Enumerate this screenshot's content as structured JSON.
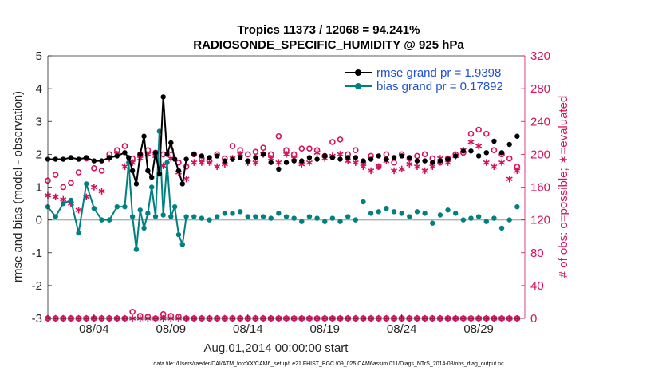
{
  "chart_data": {
    "type": "line",
    "title_line1": "Tropics 11373 / 12068 = 94.241%",
    "title_line2": "RADIOSONDE_SPECIFIC_HUMIDITY @ 925 hPa",
    "xlabel": "Aug.01,2014 00:00:00 start",
    "ylabel_left": "rmse and bias (model - observation)",
    "ylabel_right": "# of obs: o=possible; ∗=evaluated",
    "footer": "data file: /Users/raeder/DAI/ATM_forcXX/CAM6_setup/f.e21.FHIST_BGC.f09_025.CAM6assim.011/Diags_NTrS_2014-08/obs_diag_output.nc",
    "x_tick_labels": [
      "08/04",
      "08/09",
      "08/14",
      "08/19",
      "08/24",
      "08/29"
    ],
    "x_tick_days": [
      4,
      9,
      14,
      19,
      24,
      29
    ],
    "xlim_days": [
      1.0,
      32.0
    ],
    "ylim_left": [
      -3,
      5
    ],
    "y_ticks_left": [
      "-3",
      "-2",
      "-1",
      "0",
      "1",
      "2",
      "3",
      "4",
      "5"
    ],
    "ylim_right": [
      0,
      320
    ],
    "y_ticks_right": [
      "0",
      "40",
      "80",
      "120",
      "160",
      "200",
      "240",
      "280",
      "320"
    ],
    "colors": {
      "rmse": "#000000",
      "bias": "#008080",
      "obs": "#d6115d",
      "legend_text": "#1f4fd6",
      "zero_line": "#b0b0b0"
    },
    "legend": {
      "position": "top-right",
      "rmse_label": "rmse grand pr = 1.9398",
      "bias_label": "bias grand pr = 0.17892"
    },
    "series": [
      {
        "name": "rmse",
        "x": [
          1.0,
          1.5,
          2.0,
          2.5,
          3.0,
          3.5,
          4.0,
          4.5,
          5.0,
          5.5,
          6.0,
          6.25,
          6.5,
          6.75,
          7.0,
          7.25,
          7.5,
          7.75,
          8.0,
          8.25,
          8.5,
          8.75,
          9.0,
          9.25,
          9.5,
          9.75,
          10.0,
          10.5,
          11.0,
          11.5,
          12.0,
          12.5,
          13.0,
          13.5,
          14.0,
          14.5,
          15.0,
          15.5,
          16.0,
          16.5,
          17.0,
          17.5,
          18.0,
          18.5,
          19.0,
          19.5,
          20.0,
          20.5,
          21.0,
          21.5,
          22.0,
          22.5,
          23.0,
          23.5,
          24.0,
          24.5,
          25.0,
          25.5,
          26.0,
          26.5,
          27.0,
          27.5,
          28.0,
          28.5,
          29.0,
          29.5,
          30.0,
          30.5,
          31.0,
          31.5
        ],
        "values": [
          1.85,
          1.85,
          1.85,
          1.9,
          1.85,
          1.9,
          1.8,
          1.8,
          1.9,
          1.95,
          2.05,
          1.9,
          1.5,
          1.1,
          2.0,
          2.55,
          1.5,
          1.3,
          2.05,
          1.4,
          3.75,
          2.0,
          2.35,
          1.85,
          1.5,
          1.1,
          1.85,
          2.0,
          1.95,
          1.9,
          1.95,
          1.8,
          1.85,
          1.9,
          1.8,
          1.9,
          2.0,
          1.75,
          1.55,
          1.75,
          1.8,
          1.8,
          1.9,
          1.85,
          1.95,
          1.9,
          1.85,
          1.9,
          1.9,
          1.8,
          1.85,
          1.95,
          1.85,
          1.9,
          1.95,
          1.9,
          1.8,
          1.8,
          1.75,
          1.8,
          1.85,
          1.95,
          2.1,
          2.1,
          1.95,
          2.05,
          2.4,
          2.05,
          2.3,
          2.55
        ],
        "connected_through_day": 10.0
      },
      {
        "name": "bias",
        "x": [
          1.0,
          1.5,
          2.0,
          2.5,
          3.0,
          3.5,
          4.0,
          4.5,
          5.0,
          5.5,
          6.0,
          6.25,
          6.5,
          6.75,
          7.0,
          7.25,
          7.5,
          7.75,
          8.0,
          8.25,
          8.5,
          8.75,
          9.0,
          9.25,
          9.5,
          9.75,
          10.0,
          10.5,
          11.0,
          11.5,
          12.0,
          12.5,
          13.0,
          13.5,
          14.0,
          14.5,
          15.0,
          15.5,
          16.0,
          16.5,
          17.0,
          17.5,
          18.0,
          18.5,
          19.0,
          19.5,
          20.0,
          20.5,
          21.0,
          21.5,
          22.0,
          22.5,
          23.0,
          23.5,
          24.0,
          24.5,
          25.0,
          25.5,
          26.0,
          26.5,
          27.0,
          27.5,
          28.0,
          28.5,
          29.0,
          29.5,
          30.0,
          30.5,
          31.0,
          31.5
        ],
        "values": [
          0.4,
          0.1,
          0.5,
          0.6,
          -0.4,
          1.1,
          0.35,
          0.0,
          0.0,
          0.4,
          0.4,
          1.75,
          0.1,
          -0.9,
          0.3,
          -0.25,
          0.2,
          1.0,
          0.1,
          2.7,
          0.15,
          1.75,
          0.1,
          0.4,
          -0.45,
          -0.75,
          0.1,
          0.1,
          0.05,
          0.0,
          0.1,
          0.2,
          0.2,
          0.25,
          0.1,
          0.1,
          0.1,
          0.05,
          0.2,
          0.1,
          0.05,
          -0.05,
          0.1,
          0.05,
          -0.05,
          0.05,
          -0.05,
          0.1,
          0.0,
          0.55,
          0.2,
          0.25,
          0.35,
          0.25,
          0.2,
          0.1,
          0.25,
          0.2,
          -0.1,
          0.15,
          0.3,
          0.2,
          0.0,
          0.05,
          0.1,
          -0.05,
          0.05,
          -0.25,
          0.0,
          0.4
        ],
        "connected_through_day": 10.0
      },
      {
        "name": "obs_possible",
        "x": [
          1.0,
          1.5,
          2.0,
          2.5,
          3.0,
          3.5,
          4.0,
          4.5,
          5.0,
          5.5,
          6.0,
          6.5,
          7.0,
          7.5,
          8.0,
          8.5,
          9.0,
          9.5,
          10.0,
          10.5,
          11.0,
          11.5,
          12.0,
          12.5,
          13.0,
          13.5,
          14.0,
          14.5,
          15.0,
          15.5,
          16.0,
          16.5,
          17.0,
          17.5,
          18.0,
          18.5,
          19.0,
          19.5,
          20.0,
          20.5,
          21.0,
          21.5,
          22.0,
          22.5,
          23.0,
          23.5,
          24.0,
          24.5,
          25.0,
          25.5,
          26.0,
          26.5,
          27.0,
          27.5,
          28.0,
          28.5,
          29.0,
          29.5,
          30.0,
          30.5,
          31.0,
          31.5
        ],
        "values": [
          168,
          175,
          160,
          165,
          178,
          195,
          183,
          180,
          200,
          205,
          210,
          195,
          200,
          205,
          202,
          200,
          205,
          190,
          185,
          200,
          195,
          192,
          200,
          195,
          210,
          205,
          200,
          203,
          208,
          200,
          222,
          205,
          200,
          207,
          207,
          205,
          198,
          215,
          218,
          200,
          205,
          190,
          198,
          185,
          200,
          190,
          200,
          195,
          198,
          200,
          195,
          190,
          195,
          200,
          202,
          225,
          230,
          225,
          205,
          200,
          195,
          185
        ],
        "connected": false
      },
      {
        "name": "obs_evaluated",
        "x": [
          1.0,
          1.5,
          2.0,
          2.5,
          3.0,
          3.5,
          4.0,
          4.5,
          5.0,
          5.5,
          6.0,
          6.5,
          7.0,
          7.5,
          8.0,
          8.5,
          9.0,
          9.5,
          10.0,
          10.5,
          11.0,
          11.5,
          12.0,
          12.5,
          13.0,
          13.5,
          14.0,
          14.5,
          15.0,
          15.5,
          16.0,
          16.5,
          17.0,
          17.5,
          18.0,
          18.5,
          19.0,
          19.5,
          20.0,
          20.5,
          21.0,
          21.5,
          22.0,
          22.5,
          23.0,
          23.5,
          24.0,
          24.5,
          25.0,
          25.5,
          26.0,
          26.5,
          27.0,
          27.5,
          28.0,
          28.5,
          29.0,
          29.5,
          30.0,
          30.5,
          31.0,
          31.5
        ],
        "values": [
          150,
          148,
          145,
          140,
          132,
          148,
          160,
          155,
          195,
          200,
          185,
          190,
          195,
          200,
          198,
          186,
          195,
          178,
          170,
          190,
          190,
          190,
          185,
          188,
          195,
          200,
          190,
          190,
          200,
          195,
          190,
          200,
          195,
          188,
          190,
          202,
          195,
          198,
          200,
          192,
          190,
          185,
          180,
          185,
          192,
          180,
          182,
          188,
          185,
          180,
          185,
          195,
          190,
          198,
          205,
          215,
          210,
          190,
          185,
          190,
          170,
          180
        ],
        "connected": false
      },
      {
        "name": "obs_possible_bottom",
        "x": [
          1.0,
          1.5,
          2.0,
          2.5,
          3.0,
          3.5,
          4.0,
          4.5,
          5.0,
          5.5,
          6.0,
          6.5,
          7.0,
          7.5,
          8.0,
          8.5,
          9.0,
          9.5,
          10.0,
          10.5,
          11.0,
          11.5,
          12.0,
          12.5,
          13.0,
          13.5,
          14.0,
          14.5,
          15.0,
          15.5,
          16.0,
          16.5,
          17.0,
          17.5,
          18.0,
          18.5,
          19.0,
          19.5,
          20.0,
          20.5,
          21.0,
          21.5,
          22.0,
          22.5,
          23.0,
          23.5,
          24.0,
          24.5,
          25.0,
          25.5,
          26.0,
          26.5,
          27.0,
          27.5,
          28.0,
          28.5,
          29.0,
          29.5,
          30.0,
          30.5,
          31.0,
          31.5
        ],
        "values": [
          0,
          0,
          0,
          0,
          0,
          0,
          0,
          0,
          0,
          0,
          0,
          8,
          3,
          2,
          0,
          5,
          3,
          2,
          0,
          0,
          0,
          0,
          0,
          0,
          0,
          0,
          0,
          0,
          0,
          0,
          0,
          0,
          0,
          0,
          0,
          0,
          0,
          0,
          0,
          0,
          0,
          0,
          0,
          0,
          0,
          0,
          0,
          0,
          0,
          0,
          0,
          0,
          0,
          0,
          0,
          0,
          0,
          0,
          0,
          0,
          0,
          0
        ],
        "connected": false
      },
      {
        "name": "obs_evaluated_bottom",
        "x": [
          1.0,
          1.5,
          2.0,
          2.5,
          3.0,
          3.5,
          4.0,
          4.5,
          5.0,
          5.5,
          6.0,
          6.5,
          7.0,
          7.5,
          8.0,
          8.5,
          9.0,
          9.5,
          10.0,
          10.5,
          11.0,
          11.5,
          12.0,
          12.5,
          13.0,
          13.5,
          14.0,
          14.5,
          15.0,
          15.5,
          16.0,
          16.5,
          17.0,
          17.5,
          18.0,
          18.5,
          19.0,
          19.5,
          20.0,
          20.5,
          21.0,
          21.5,
          22.0,
          22.5,
          23.0,
          23.5,
          24.0,
          24.5,
          25.0,
          25.5,
          26.0,
          26.5,
          27.0,
          27.5,
          28.0,
          28.5,
          29.0,
          29.5,
          30.0,
          30.5,
          31.0,
          31.5
        ],
        "values": [
          0,
          0,
          0,
          0,
          0,
          0,
          0,
          0,
          0,
          0,
          0,
          0,
          0,
          0,
          0,
          0,
          0,
          0,
          0,
          0,
          0,
          0,
          0,
          0,
          0,
          0,
          0,
          0,
          0,
          0,
          0,
          0,
          0,
          0,
          0,
          0,
          0,
          0,
          0,
          0,
          0,
          0,
          0,
          0,
          0,
          0,
          0,
          0,
          0,
          0,
          0,
          0,
          0,
          0,
          0,
          0,
          0,
          0,
          0,
          0,
          0,
          0
        ],
        "connected": false
      }
    ]
  }
}
